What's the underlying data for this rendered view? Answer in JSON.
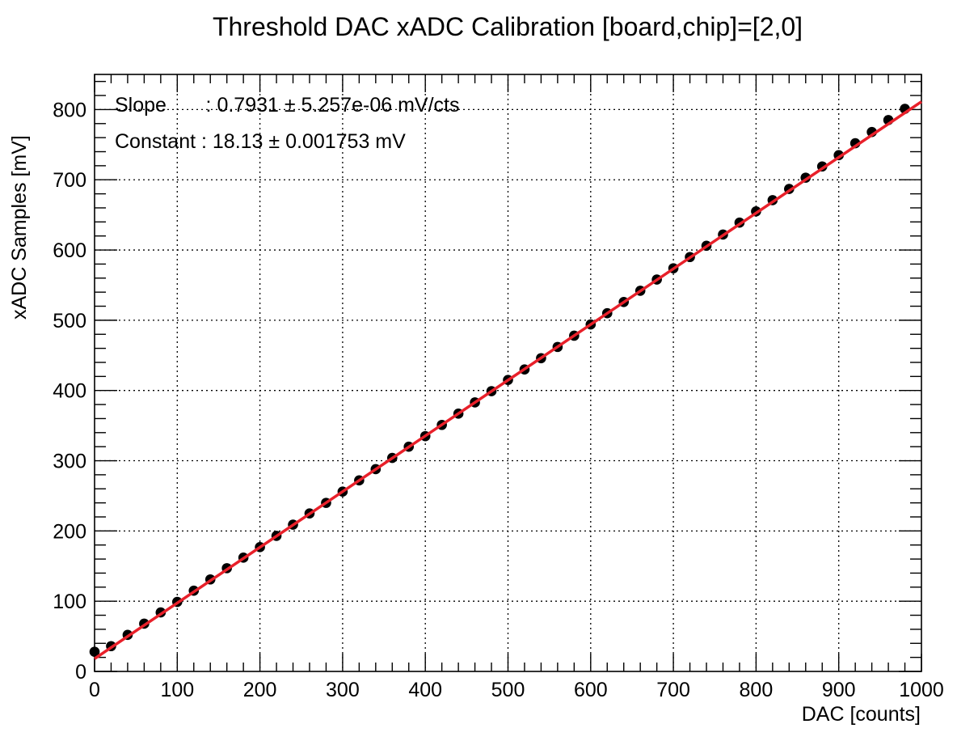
{
  "chart_data": {
    "type": "scatter",
    "title": "Threshold DAC xADC Calibration [board,chip]=[2,0]",
    "xlabel": "DAC [counts]",
    "ylabel": "xADC Samples [mV]",
    "xlim": [
      0,
      1000
    ],
    "ylim": [
      0,
      850
    ],
    "x_ticks": [
      0,
      100,
      200,
      300,
      400,
      500,
      600,
      700,
      800,
      900,
      1000
    ],
    "y_ticks": [
      0,
      100,
      200,
      300,
      400,
      500,
      600,
      700,
      800
    ],
    "grid": true,
    "annotations": [
      "Slope       : 0.7931 ± 5.257e-06 mV/cts",
      "Constant : 18.13 ± 0.001753 mV"
    ],
    "fit": {
      "slope": 0.7931,
      "constant": 18.13,
      "color": "#e8202a",
      "x_range": [
        0,
        1000
      ]
    },
    "series": [
      {
        "marker_color": "#000000",
        "x": [
          0,
          20,
          40,
          60,
          80,
          100,
          120,
          140,
          160,
          180,
          200,
          220,
          240,
          260,
          280,
          300,
          320,
          340,
          360,
          380,
          400,
          420,
          440,
          460,
          480,
          500,
          520,
          540,
          560,
          580,
          600,
          620,
          640,
          660,
          680,
          700,
          720,
          740,
          760,
          780,
          800,
          820,
          840,
          860,
          880,
          900,
          920,
          940,
          960,
          980
        ],
        "y": [
          28,
          36,
          52,
          68,
          84,
          99,
          115,
          131,
          147,
          162,
          177,
          193,
          209,
          225,
          240,
          256,
          272,
          288,
          304,
          320,
          335,
          351,
          367,
          383,
          399,
          415,
          430,
          446,
          462,
          478,
          494,
          510,
          526,
          542,
          558,
          574,
          590,
          606,
          622,
          639,
          655,
          671,
          687,
          703,
          719,
          735,
          752,
          768,
          785,
          801
        ]
      }
    ]
  }
}
